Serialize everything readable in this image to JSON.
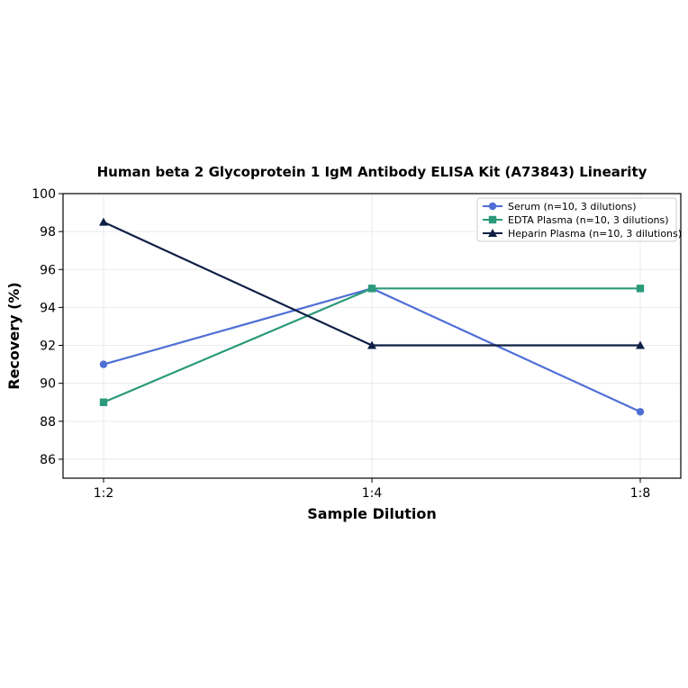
{
  "chart_data": {
    "type": "line",
    "title": "Human beta 2 Glycoprotein 1 IgM Antibody ELISA Kit (A73843) Linearity",
    "xlabel": "Sample Dilution",
    "ylabel": "Recovery (%)",
    "categories": [
      "1:2",
      "1:4",
      "1:8"
    ],
    "ylim": [
      85,
      100
    ],
    "yticks": [
      86,
      88,
      90,
      92,
      94,
      96,
      98,
      100
    ],
    "grid": true,
    "legend_position": "top-right",
    "series": [
      {
        "name": "Serum (n=10, 3 dilutions)",
        "values": [
          91,
          95,
          88.5
        ],
        "color": "#4f6fd6",
        "marker": "circle"
      },
      {
        "name": "EDTA Plasma (n=10, 3 dilutions)",
        "values": [
          89,
          95,
          95
        ],
        "color": "#2a9a7a",
        "marker": "square"
      },
      {
        "name": "Heparin Plasma (n=10, 3 dilutions)",
        "values": [
          98.5,
          92,
          92
        ],
        "color": "#0f1f45",
        "marker": "triangle"
      }
    ]
  }
}
